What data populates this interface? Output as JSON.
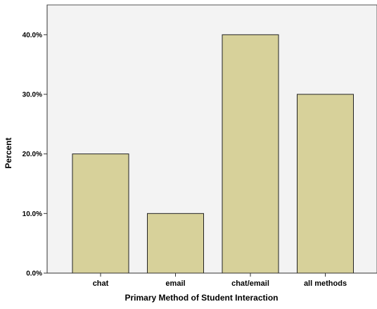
{
  "chart_data": {
    "type": "bar",
    "categories": [
      "chat",
      "email",
      "chat/email",
      "all methods"
    ],
    "values": [
      20,
      10,
      40,
      30
    ],
    "xlabel": "Primary Method of Student Interaction",
    "ylabel": "Percent",
    "ylim": [
      0,
      45
    ],
    "yticks": [
      0,
      10,
      20,
      30,
      40
    ],
    "ytick_labels": [
      "0.0%",
      "10.0%",
      "20.0%",
      "30.0%",
      "40.0%"
    ],
    "grid": false,
    "colors": {
      "plot_background": "#f3f3f3",
      "bar_fill": "#d7d19a",
      "bar_stroke": "#222222"
    }
  }
}
